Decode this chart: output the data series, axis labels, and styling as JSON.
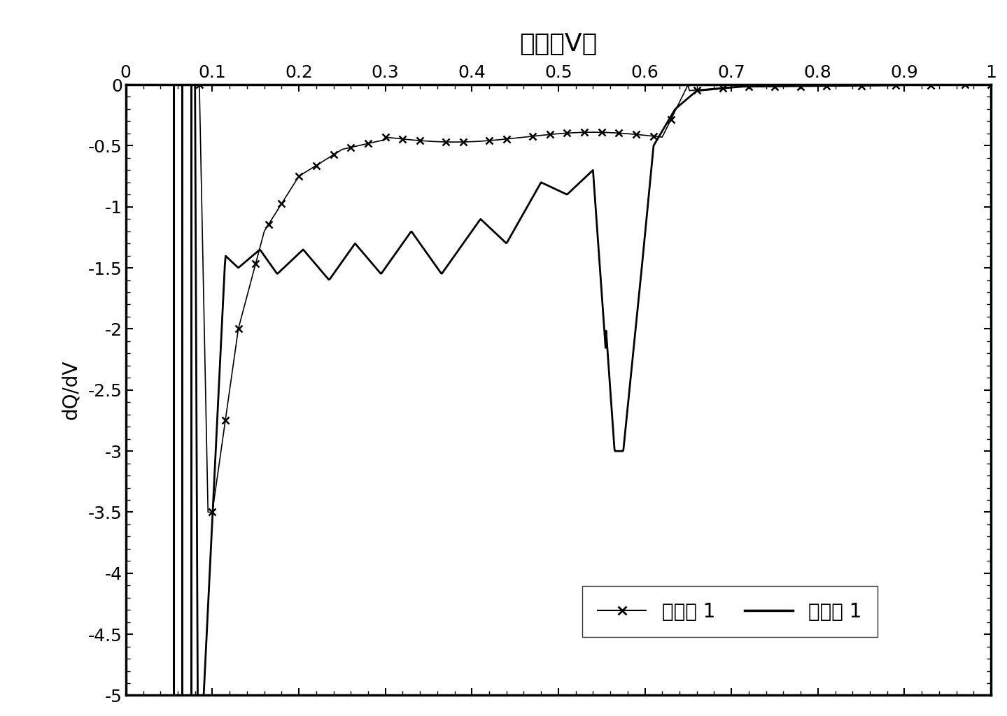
{
  "title": "电压（V）",
  "ylabel": "dQ/dV",
  "xlim": [
    0,
    1
  ],
  "ylim": [
    -5,
    0
  ],
  "xticks": [
    0,
    0.1,
    0.2,
    0.3,
    0.4,
    0.5,
    0.6,
    0.7,
    0.8,
    0.9,
    1
  ],
  "yticks": [
    0,
    -0.5,
    -1,
    -1.5,
    -2,
    -2.5,
    -3,
    -3.5,
    -4,
    -4.5,
    -5
  ],
  "legend_label1": "实施例 1",
  "legend_label2": "对比例 1",
  "background_color": "#ffffff",
  "line_color": "#000000",
  "title_fontsize": 26,
  "axis_fontsize": 20,
  "tick_fontsize": 18,
  "legend_fontsize": 20
}
